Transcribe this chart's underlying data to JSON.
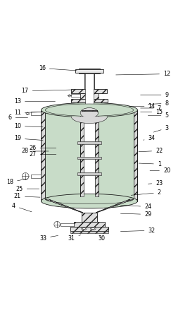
{
  "bg_color": "#ffffff",
  "line_color": "#1a1a1a",
  "fill_green": "#c8dcc8",
  "fill_hatch": "#e8e8e8",
  "fill_white": "#ffffff",
  "label_positions": {
    "1": [
      0.84,
      0.54,
      0.72,
      0.535
    ],
    "2": [
      0.84,
      0.69,
      0.68,
      0.705
    ],
    "3": [
      0.88,
      0.35,
      0.8,
      0.375
    ],
    "4": [
      0.07,
      0.76,
      0.175,
      0.795
    ],
    "5": [
      0.88,
      0.285,
      0.77,
      0.285
    ],
    "6": [
      0.05,
      0.295,
      0.155,
      0.295
    ],
    "7": [
      0.84,
      0.245,
      0.73,
      0.245
    ],
    "8": [
      0.88,
      0.22,
      0.77,
      0.225
    ],
    "9": [
      0.88,
      0.175,
      0.73,
      0.175
    ],
    "10": [
      0.09,
      0.34,
      0.235,
      0.345
    ],
    "11": [
      0.09,
      0.27,
      0.235,
      0.265
    ],
    "12": [
      0.88,
      0.065,
      0.6,
      0.07
    ],
    "13": [
      0.09,
      0.21,
      0.3,
      0.21
    ],
    "14": [
      0.8,
      0.235,
      0.67,
      0.235
    ],
    "15": [
      0.84,
      0.265,
      0.73,
      0.265
    ],
    "16": [
      0.22,
      0.035,
      0.415,
      0.048
    ],
    "17": [
      0.13,
      0.155,
      0.39,
      0.148
    ],
    "18": [
      0.05,
      0.635,
      0.155,
      0.615
    ],
    "19": [
      0.09,
      0.405,
      0.235,
      0.415
    ],
    "20": [
      0.88,
      0.575,
      0.78,
      0.575
    ],
    "21": [
      0.09,
      0.71,
      0.22,
      0.715
    ],
    "22": [
      0.84,
      0.47,
      0.72,
      0.475
    ],
    "23": [
      0.84,
      0.64,
      0.77,
      0.645
    ],
    "24": [
      0.78,
      0.765,
      0.625,
      0.755
    ],
    "25": [
      0.1,
      0.67,
      0.215,
      0.67
    ],
    "26": [
      0.17,
      0.455,
      0.305,
      0.455
    ],
    "27": [
      0.17,
      0.49,
      0.305,
      0.488
    ],
    "28": [
      0.13,
      0.472,
      0.265,
      0.472
    ],
    "29": [
      0.78,
      0.805,
      0.625,
      0.8
    ],
    "30": [
      0.535,
      0.93,
      0.515,
      0.91
    ],
    "31": [
      0.375,
      0.93,
      0.435,
      0.91
    ],
    "32": [
      0.8,
      0.89,
      0.625,
      0.895
    ],
    "33": [
      0.225,
      0.93,
      0.315,
      0.915
    ],
    "34": [
      0.8,
      0.405,
      0.745,
      0.415
    ]
  }
}
